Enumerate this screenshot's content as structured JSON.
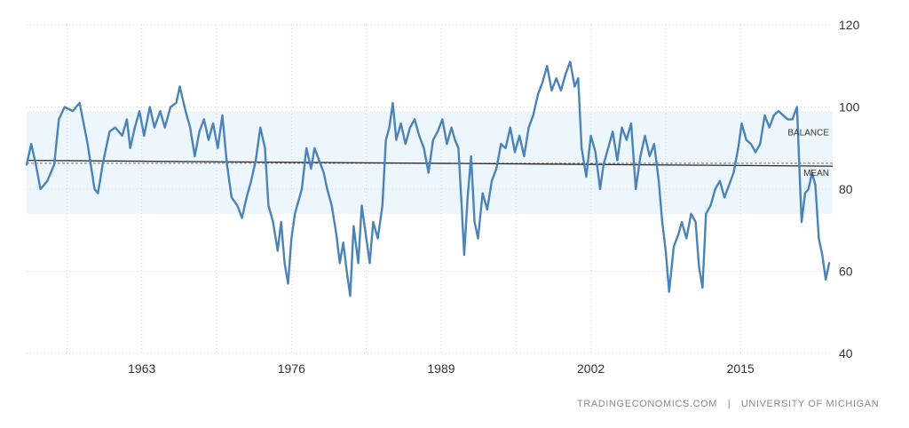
{
  "source": {
    "site": "TRADINGECONOMICS.COM",
    "separator": "|",
    "provider": "UNIVERSITY OF MICHIGAN"
  },
  "colors": {
    "series": "#4a83b8",
    "band": "#eef6fd",
    "mean": "#2a2a2a",
    "grid": "#d6d6d6",
    "text": "#333333",
    "muted": "#8a8a8a"
  },
  "chart_data": {
    "type": "line",
    "title": "",
    "xlabel": "",
    "ylabel": "",
    "xlim": [
      1953,
      2023
    ],
    "ylim": [
      40,
      120
    ],
    "x_ticks": [
      "1963",
      "1976",
      "1989",
      "2002",
      "2015"
    ],
    "y_ticks": [
      "40",
      "60",
      "80",
      "100",
      "120"
    ],
    "grid": "vertical dotted",
    "band": {
      "label": "BALANCE",
      "range": [
        74,
        99
      ]
    },
    "mean": {
      "label": "MEAN",
      "value": 86.3,
      "trend_start": 87.0,
      "trend_end": 85.6
    },
    "series": [
      {
        "points": [
          [
            1953.0,
            86
          ],
          [
            1953.4,
            91
          ],
          [
            1953.8,
            86
          ],
          [
            1954.2,
            80
          ],
          [
            1954.8,
            82
          ],
          [
            1955.4,
            86
          ],
          [
            1955.8,
            97
          ],
          [
            1956.3,
            100
          ],
          [
            1957.0,
            99
          ],
          [
            1957.6,
            101
          ],
          [
            1958.3,
            91
          ],
          [
            1958.9,
            80
          ],
          [
            1959.2,
            79
          ],
          [
            1959.6,
            86
          ],
          [
            1960.2,
            94
          ],
          [
            1960.7,
            95
          ],
          [
            1961.3,
            93
          ],
          [
            1961.7,
            97
          ],
          [
            1962.0,
            90
          ],
          [
            1962.4,
            95
          ],
          [
            1962.8,
            99
          ],
          [
            1963.2,
            93
          ],
          [
            1963.7,
            100
          ],
          [
            1964.1,
            95
          ],
          [
            1964.6,
            99
          ],
          [
            1965.0,
            95
          ],
          [
            1965.5,
            100
          ],
          [
            1966.0,
            101
          ],
          [
            1966.3,
            105
          ],
          [
            1966.8,
            99
          ],
          [
            1967.2,
            95
          ],
          [
            1967.6,
            88
          ],
          [
            1968.0,
            94
          ],
          [
            1968.4,
            97
          ],
          [
            1968.8,
            92
          ],
          [
            1969.2,
            96
          ],
          [
            1969.6,
            90
          ],
          [
            1970.0,
            98
          ],
          [
            1970.4,
            86
          ],
          [
            1970.8,
            78
          ],
          [
            1971.3,
            76
          ],
          [
            1971.7,
            73
          ],
          [
            1972.1,
            78
          ],
          [
            1972.5,
            82
          ],
          [
            1972.9,
            87
          ],
          [
            1973.3,
            95
          ],
          [
            1973.7,
            90
          ],
          [
            1974.0,
            76
          ],
          [
            1974.4,
            72
          ],
          [
            1974.8,
            65
          ],
          [
            1975.1,
            72
          ],
          [
            1975.4,
            62
          ],
          [
            1975.7,
            57
          ],
          [
            1976.0,
            68
          ],
          [
            1976.3,
            74
          ],
          [
            1976.6,
            77
          ],
          [
            1976.9,
            80
          ],
          [
            1977.3,
            90
          ],
          [
            1977.7,
            85
          ],
          [
            1978.0,
            90
          ],
          [
            1978.4,
            87
          ],
          [
            1978.8,
            84
          ],
          [
            1979.1,
            80
          ],
          [
            1979.5,
            76
          ],
          [
            1979.9,
            69
          ],
          [
            1980.2,
            62
          ],
          [
            1980.5,
            67
          ],
          [
            1980.8,
            60
          ],
          [
            1981.1,
            54
          ],
          [
            1981.4,
            71
          ],
          [
            1981.8,
            62
          ],
          [
            1982.1,
            76
          ],
          [
            1982.4,
            70
          ],
          [
            1982.8,
            62
          ],
          [
            1983.1,
            72
          ],
          [
            1983.5,
            68
          ],
          [
            1983.9,
            76
          ],
          [
            1984.2,
            92
          ],
          [
            1984.5,
            95
          ],
          [
            1984.8,
            101
          ],
          [
            1985.1,
            92
          ],
          [
            1985.5,
            96
          ],
          [
            1985.9,
            91
          ],
          [
            1986.3,
            95
          ],
          [
            1986.7,
            97
          ],
          [
            1987.1,
            93
          ],
          [
            1987.5,
            90
          ],
          [
            1987.9,
            84
          ],
          [
            1988.3,
            92
          ],
          [
            1988.7,
            94
          ],
          [
            1989.1,
            97
          ],
          [
            1989.5,
            91
          ],
          [
            1989.9,
            95
          ],
          [
            1990.2,
            92
          ],
          [
            1990.5,
            90
          ],
          [
            1990.8,
            75
          ],
          [
            1991.0,
            64
          ],
          [
            1991.3,
            78
          ],
          [
            1991.6,
            88
          ],
          [
            1991.9,
            72
          ],
          [
            1992.2,
            68
          ],
          [
            1992.6,
            79
          ],
          [
            1993.0,
            75
          ],
          [
            1993.4,
            82
          ],
          [
            1993.8,
            85
          ],
          [
            1994.2,
            91
          ],
          [
            1994.6,
            90
          ],
          [
            1995.0,
            95
          ],
          [
            1995.4,
            89
          ],
          [
            1995.8,
            93
          ],
          [
            1996.2,
            88
          ],
          [
            1996.6,
            95
          ],
          [
            1997.0,
            98
          ],
          [
            1997.4,
            103
          ],
          [
            1997.8,
            106
          ],
          [
            1998.2,
            110
          ],
          [
            1998.6,
            104
          ],
          [
            1999.0,
            107
          ],
          [
            1999.4,
            104
          ],
          [
            1999.8,
            108
          ],
          [
            2000.2,
            111
          ],
          [
            2000.6,
            105
          ],
          [
            2000.9,
            107
          ],
          [
            2001.2,
            90
          ],
          [
            2001.6,
            83
          ],
          [
            2002.0,
            93
          ],
          [
            2002.4,
            89
          ],
          [
            2002.8,
            80
          ],
          [
            2003.1,
            86
          ],
          [
            2003.5,
            90
          ],
          [
            2003.9,
            94
          ],
          [
            2004.3,
            87
          ],
          [
            2004.7,
            95
          ],
          [
            2005.1,
            92
          ],
          [
            2005.5,
            96
          ],
          [
            2005.9,
            80
          ],
          [
            2006.3,
            88
          ],
          [
            2006.7,
            93
          ],
          [
            2007.1,
            88
          ],
          [
            2007.5,
            91
          ],
          [
            2007.9,
            82
          ],
          [
            2008.2,
            72
          ],
          [
            2008.5,
            65
          ],
          [
            2008.8,
            55
          ],
          [
            2009.2,
            66
          ],
          [
            2009.6,
            69
          ],
          [
            2009.9,
            72
          ],
          [
            2010.3,
            68
          ],
          [
            2010.7,
            74
          ],
          [
            2011.1,
            72
          ],
          [
            2011.4,
            61
          ],
          [
            2011.7,
            56
          ],
          [
            2012.0,
            74
          ],
          [
            2012.4,
            76
          ],
          [
            2012.8,
            80
          ],
          [
            2013.2,
            82
          ],
          [
            2013.6,
            78
          ],
          [
            2014.0,
            81
          ],
          [
            2014.4,
            84
          ],
          [
            2014.8,
            90
          ],
          [
            2015.1,
            96
          ],
          [
            2015.5,
            92
          ],
          [
            2015.9,
            91
          ],
          [
            2016.3,
            89
          ],
          [
            2016.7,
            91
          ],
          [
            2017.1,
            98
          ],
          [
            2017.5,
            95
          ],
          [
            2017.9,
            98
          ],
          [
            2018.3,
            99
          ],
          [
            2018.7,
            98
          ],
          [
            2019.1,
            97
          ],
          [
            2019.5,
            97
          ],
          [
            2019.9,
            100
          ],
          [
            2020.3,
            72
          ],
          [
            2020.6,
            79
          ],
          [
            2020.9,
            80
          ],
          [
            2021.2,
            84
          ],
          [
            2021.5,
            81
          ],
          [
            2021.8,
            68
          ],
          [
            2022.1,
            64
          ],
          [
            2022.4,
            58
          ],
          [
            2022.7,
            62
          ]
        ]
      }
    ]
  }
}
